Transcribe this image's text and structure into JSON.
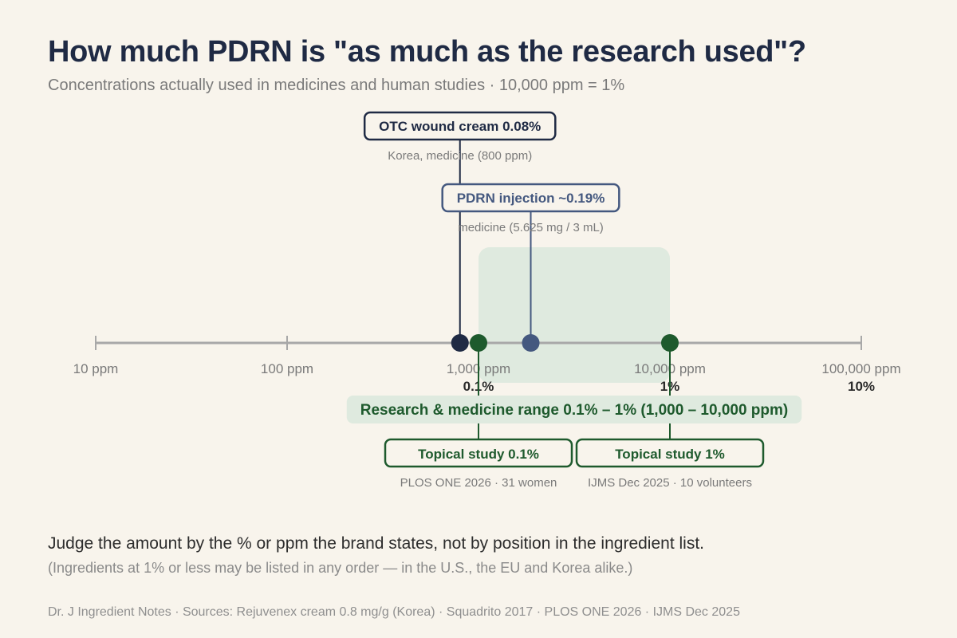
{
  "title": "How much PDRN is \"as much as the research used\"?",
  "subtitle": "Concentrations actually used in medicines and human studies · 10,000 ppm = 1%",
  "chart_data": {
    "type": "scatter",
    "axis": {
      "scale": "log",
      "unit": "ppm",
      "range": [
        10,
        100000
      ],
      "ticks": [
        {
          "value": 10,
          "label": "10 ppm",
          "pct_label": ""
        },
        {
          "value": 100,
          "label": "100 ppm",
          "pct_label": ""
        },
        {
          "value": 1000,
          "label": "1,000 ppm",
          "pct_label": "0.1%"
        },
        {
          "value": 10000,
          "label": "10,000 ppm",
          "pct_label": "1%"
        },
        {
          "value": 100000,
          "label": "100,000 ppm",
          "pct_label": "10%"
        }
      ]
    },
    "range_band": {
      "from": 1000,
      "to": 10000,
      "label": "Research & medicine range  0.1% – 1%  (1,000 – 10,000 ppm)",
      "color": "#1e5a2d",
      "fill": "#dfeadf"
    },
    "points": [
      {
        "value": 800,
        "label": "OTC wound cream 0.08%",
        "sublabel": "Korea, medicine (800 ppm)",
        "color": "#1f2a44",
        "side": "above",
        "tier": 1
      },
      {
        "value": 1875,
        "label": "PDRN injection ~0.19%",
        "sublabel": "medicine (5.625 mg / 3 mL)",
        "color": "#44587f",
        "side": "above",
        "tier": 2
      },
      {
        "value": 1000,
        "label": "Topical study 0.1%",
        "sublabel": "PLOS ONE 2026 · 31 women",
        "color": "#1e5a2d",
        "side": "below",
        "tier": 1
      },
      {
        "value": 10000,
        "label": "Topical study 1%",
        "sublabel": "IJMS Dec 2025 · 10 volunteers",
        "color": "#1e5a2d",
        "side": "below",
        "tier": 1
      }
    ]
  },
  "notes": {
    "main": "Judge the amount by the % or ppm the brand states, not by position in the ingredient list.",
    "sub": "(Ingredients at 1% or less may be listed in any order — in the U.S., the EU and Korea alike.)"
  },
  "footer": "Dr. J Ingredient Notes  ·  Sources: Rejuvenex cream 0.8 mg/g (Korea) · Squadrito 2017 · PLOS ONE 2026 · IJMS Dec 2025",
  "colors": {
    "axis": "#a8a8a8",
    "label_gray": "#7a7a7a",
    "pct_label": "#2a2a2a",
    "background": "#f8f4ec"
  }
}
